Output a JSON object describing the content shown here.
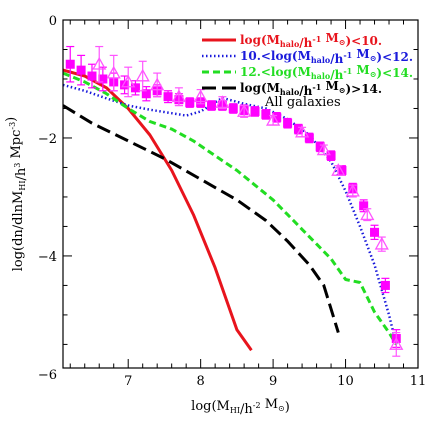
{
  "chart_data": {
    "type": "line",
    "xlabel": "log(M_HI/h^-2 M_sun)",
    "ylabel": "log(dn/dlnM_HI/h^3 Mpc^-3)",
    "xlim": [
      6.1,
      11.0
    ],
    "ylim": [
      -5.9,
      0.0
    ],
    "x_ticks": [
      7,
      8,
      9,
      10,
      11
    ],
    "x_tick_labels": [
      "7",
      "8",
      "9",
      "10",
      "11"
    ],
    "y_ticks": [
      0,
      -2,
      -4,
      -6
    ],
    "y_tick_labels": [
      "0",
      "−2",
      "−4",
      "−6"
    ],
    "grid": false,
    "legend_position": "top-right",
    "series": [
      {
        "name": "log(M_halo/h^-1 M_sun)<10.",
        "color": "#e8141d",
        "dash": "solid",
        "x": [
          6.1,
          6.4,
          6.7,
          7.0,
          7.3,
          7.6,
          7.9,
          8.2,
          8.5,
          8.7
        ],
        "y": [
          -0.85,
          -0.95,
          -1.15,
          -1.5,
          -1.95,
          -2.55,
          -3.3,
          -4.2,
          -5.25,
          -5.6
        ]
      },
      {
        "name": "10.<log(M_halo/h^-1 M_sun)<12.",
        "color": "#1a1adb",
        "dash": "dotted",
        "x": [
          6.1,
          6.4,
          6.7,
          7.0,
          7.3,
          7.6,
          7.8,
          8.0,
          8.3,
          8.6,
          8.9,
          9.2,
          9.5,
          9.8,
          10.0,
          10.2,
          10.4,
          10.6,
          10.7
        ],
        "y": [
          -1.1,
          -1.2,
          -1.33,
          -1.45,
          -1.52,
          -1.58,
          -1.62,
          -1.55,
          -1.32,
          -1.42,
          -1.5,
          -1.68,
          -1.95,
          -2.4,
          -2.9,
          -3.5,
          -4.15,
          -5.0,
          -5.5
        ]
      },
      {
        "name": "12.<log(M_halo/h^-1 M_sun)<14.",
        "color": "#22dd22",
        "dash": "dashed",
        "x": [
          6.1,
          6.4,
          6.7,
          7.0,
          7.3,
          7.6,
          7.9,
          8.2,
          8.5,
          8.8,
          9.0,
          9.2,
          9.4,
          9.6,
          9.8,
          10.0,
          10.2,
          10.4,
          10.6,
          10.7
        ],
        "y": [
          -0.9,
          -1.05,
          -1.25,
          -1.5,
          -1.72,
          -1.85,
          -2.05,
          -2.3,
          -2.55,
          -2.85,
          -3.05,
          -3.3,
          -3.55,
          -3.8,
          -4.05,
          -4.4,
          -4.45,
          -4.95,
          -5.3,
          -5.5
        ]
      },
      {
        "name": "log(M_halo/h^-1 M_sun)>14.",
        "color": "#000000",
        "dash": "longdash",
        "x": [
          6.1,
          6.5,
          7.0,
          7.5,
          8.0,
          8.5,
          8.9,
          9.2,
          9.5,
          9.7,
          9.9
        ],
        "y": [
          -1.45,
          -1.75,
          -2.05,
          -2.35,
          -2.7,
          -3.05,
          -3.4,
          -3.75,
          -4.15,
          -4.5,
          -5.3
        ]
      }
    ],
    "points": [
      {
        "name": "All galaxies",
        "color": "#ff00ff",
        "marker": "square",
        "x": [
          6.2,
          6.35,
          6.5,
          6.65,
          6.8,
          6.95,
          7.1,
          7.25,
          7.4,
          7.55,
          7.7,
          7.85,
          8.0,
          8.15,
          8.3,
          8.45,
          8.6,
          8.75,
          8.9,
          9.05,
          9.2,
          9.35,
          9.5,
          9.65,
          9.8,
          9.95,
          10.1,
          10.25,
          10.4,
          10.55,
          10.7
        ],
        "y": [
          -0.75,
          -0.85,
          -0.95,
          -1.0,
          -1.05,
          -1.1,
          -1.15,
          -1.25,
          -1.2,
          -1.3,
          -1.35,
          -1.4,
          -1.4,
          -1.45,
          -1.45,
          -1.5,
          -1.52,
          -1.55,
          -1.6,
          -1.65,
          -1.75,
          -1.85,
          -2.0,
          -2.15,
          -2.3,
          -2.55,
          -2.85,
          -3.15,
          -3.6,
          -4.5,
          -5.4
        ],
        "err": [
          0.3,
          0.25,
          0.2,
          0.2,
          0.15,
          0.15,
          0.12,
          0.12,
          0.1,
          0.1,
          0.1,
          0.08,
          0.08,
          0.08,
          0.08,
          0.08,
          0.08,
          0.08,
          0.08,
          0.08,
          0.08,
          0.08,
          0.08,
          0.08,
          0.08,
          0.08,
          0.08,
          0.1,
          0.12,
          0.12,
          0.15
        ]
      },
      {
        "name": "All galaxies (triangles)",
        "color": "#ff55ff",
        "marker": "triangle",
        "x": [
          6.6,
          6.8,
          7.0,
          7.2,
          7.4,
          7.7,
          8.0,
          8.3,
          8.6,
          9.0,
          9.4,
          9.7,
          9.9,
          10.1,
          10.3,
          10.5,
          10.7
        ],
        "y": [
          -0.75,
          -0.9,
          -1.05,
          -0.95,
          -1.1,
          -1.3,
          -1.3,
          -1.4,
          -1.55,
          -1.7,
          -1.9,
          -2.2,
          -2.55,
          -2.9,
          -3.3,
          -3.8,
          -5.5
        ],
        "err": [
          0.3,
          0.3,
          0.25,
          0.25,
          0.2,
          0.15,
          0.12,
          0.1,
          0.1,
          0.08,
          0.08,
          0.08,
          0.08,
          0.1,
          0.1,
          0.12,
          0.2
        ]
      }
    ],
    "legend": [
      {
        "text": "log(M_halo/h^-1 M_sun)<10.",
        "color": "#e8141d",
        "dash": "solid"
      },
      {
        "text": "10.<log(M_halo/h^-1 M_sun)<12.",
        "color": "#1a1adb",
        "dash": "dotted"
      },
      {
        "text": "12.<log(M_halo/h^-1 M_sun)<14.",
        "color": "#22dd22",
        "dash": "dashed"
      },
      {
        "text": "log(M_halo/h^-1 M_sun)>14.",
        "color": "#000000",
        "dash": "longdash"
      }
    ],
    "annotation": "All galaxies"
  }
}
